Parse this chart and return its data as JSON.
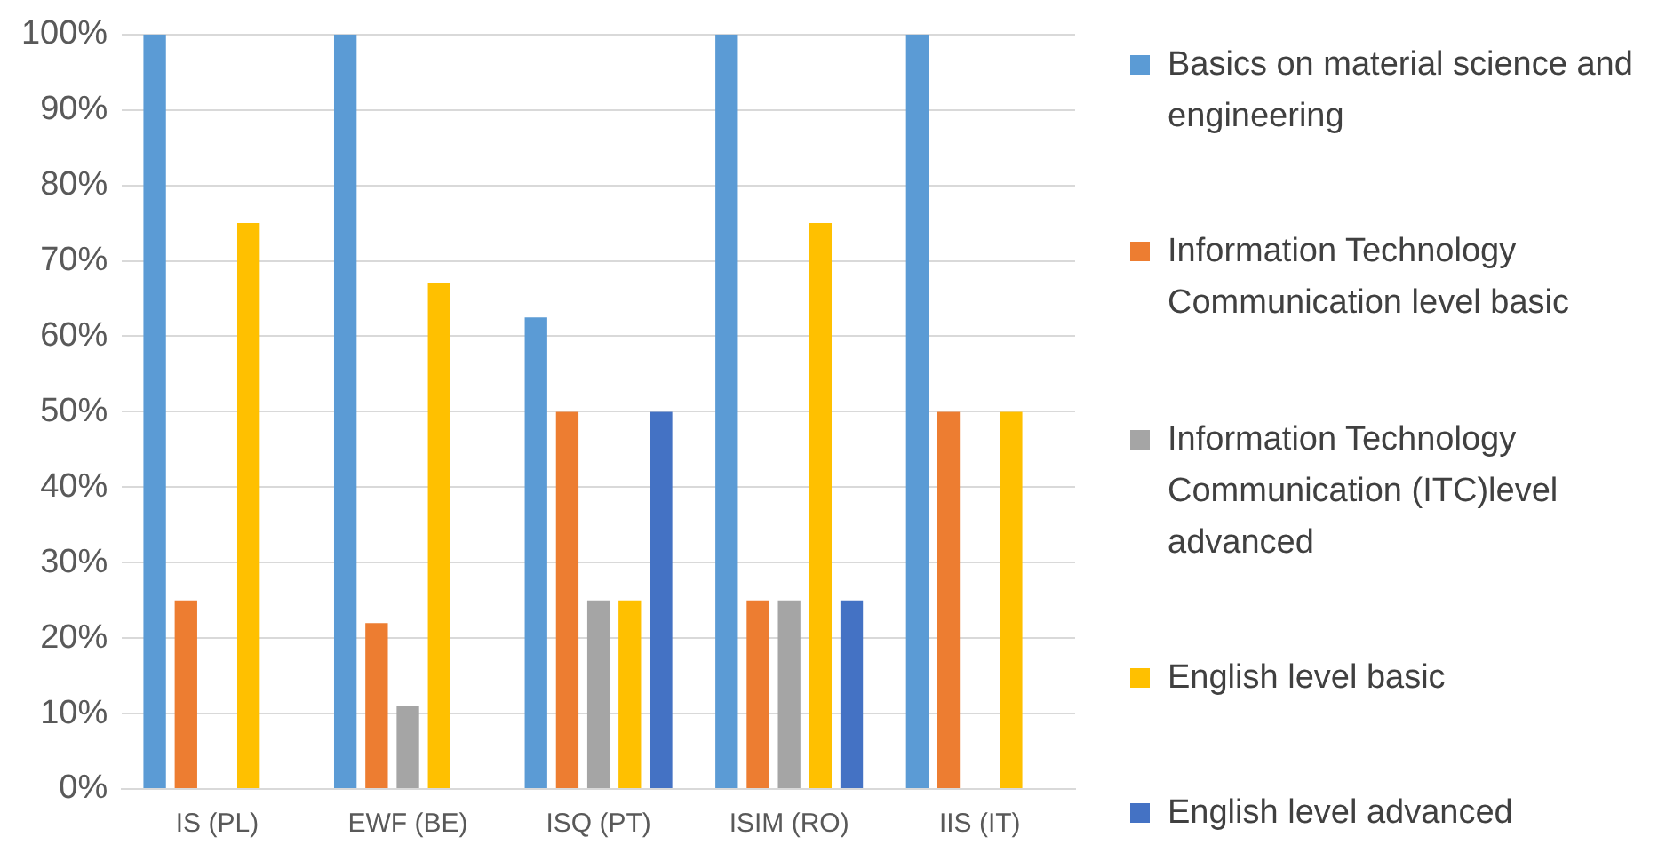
{
  "chart_data": {
    "type": "bar",
    "categories": [
      "IS (PL)",
      "EWF (BE)",
      "ISQ (PT)",
      "ISIM (RO)",
      "IIS (IT)"
    ],
    "series": [
      {
        "name": "Basics on material science and engineering",
        "color": "#5b9bd5",
        "values": [
          100,
          100,
          62.5,
          100,
          100
        ]
      },
      {
        "name": "Information Technology Communication level basic",
        "color": "#ed7d31",
        "values": [
          25,
          22,
          50,
          25,
          50
        ]
      },
      {
        "name": "Information Technology Communication (ITC)level advanced",
        "color": "#a5a5a5",
        "values": [
          0,
          11,
          25,
          25,
          0
        ]
      },
      {
        "name": "English level basic",
        "color": "#ffc000",
        "values": [
          75,
          67,
          25,
          75,
          50
        ]
      },
      {
        "name": "English level advanced",
        "color": "#4472c4",
        "values": [
          0,
          0,
          50,
          25,
          0
        ]
      }
    ],
    "ylim": [
      0,
      100
    ],
    "yticks": [
      {
        "value": 0,
        "label": "0%"
      },
      {
        "value": 10,
        "label": "10%"
      },
      {
        "value": 20,
        "label": "20%"
      },
      {
        "value": 30,
        "label": "30%"
      },
      {
        "value": 40,
        "label": "40%"
      },
      {
        "value": 50,
        "label": "50%"
      },
      {
        "value": 60,
        "label": "60%"
      },
      {
        "value": 70,
        "label": "70%"
      },
      {
        "value": 80,
        "label": "80%"
      },
      {
        "value": 90,
        "label": "90%"
      },
      {
        "value": 100,
        "label": "100%"
      }
    ],
    "grid": "y",
    "legend": "right"
  }
}
